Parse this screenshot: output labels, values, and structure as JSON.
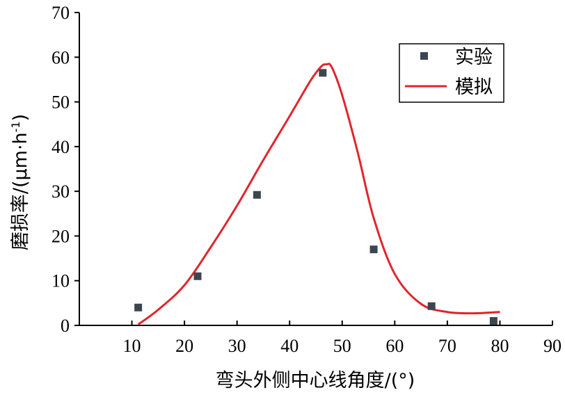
{
  "chart_data": {
    "type": "scatter",
    "xlabel": "弯头外侧中心线角度/(°)",
    "ylabel_main": "磨损率/(μm·h",
    "ylabel_sup": "-1",
    "ylabel_tail": ")",
    "xlim": [
      0,
      90
    ],
    "ylim": [
      0,
      70
    ],
    "xticks": [
      10,
      20,
      30,
      40,
      50,
      60,
      70,
      80,
      90
    ],
    "yticks": [
      0,
      10,
      20,
      30,
      40,
      50,
      60,
      70
    ],
    "grid": false,
    "legend_position": "top-right",
    "series": [
      {
        "name": "实验",
        "kind": "markers",
        "color": "#3c4650",
        "x": [
          11.2,
          22.5,
          33.8,
          46.3,
          56.0,
          67.0,
          78.8
        ],
        "y": [
          4.0,
          11.0,
          29.2,
          56.5,
          17.0,
          4.3,
          1.0
        ]
      },
      {
        "name": "模拟",
        "kind": "line",
        "color": "#e0252b",
        "x": [
          11.2,
          15,
          20,
          25,
          30,
          35,
          40,
          44,
          46,
          47,
          48,
          50,
          53,
          56,
          60,
          65,
          70,
          75,
          80
        ],
        "y": [
          0.2,
          3.5,
          9.0,
          17.5,
          26.8,
          37.0,
          46.8,
          54.8,
          57.9,
          58.4,
          57.8,
          51.5,
          38.5,
          24.0,
          11.5,
          4.8,
          3.0,
          2.7,
          3.0
        ]
      }
    ]
  }
}
